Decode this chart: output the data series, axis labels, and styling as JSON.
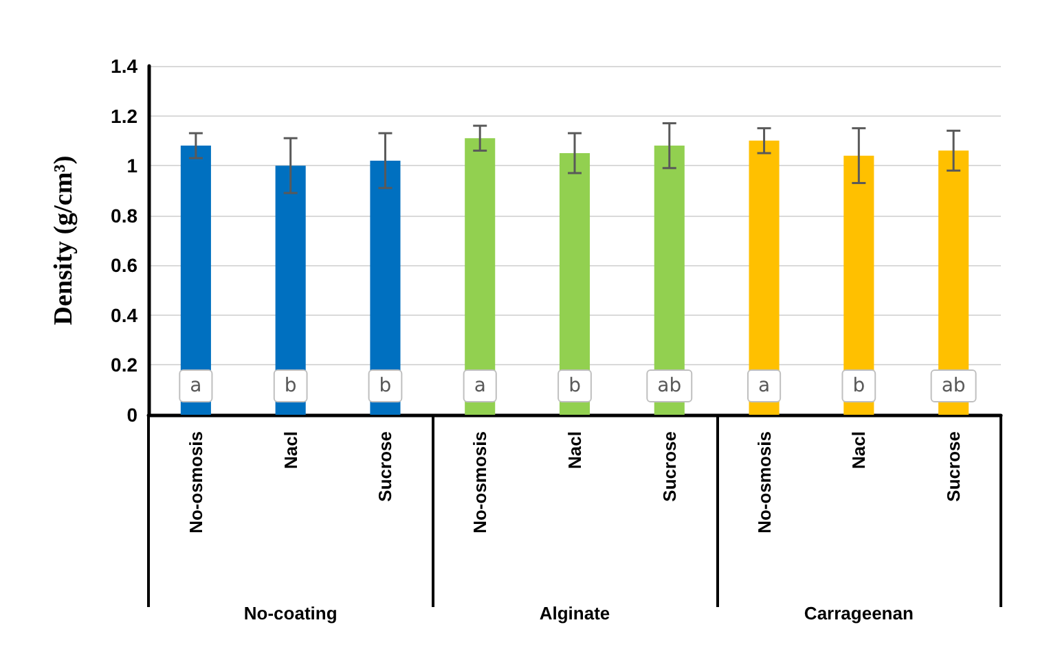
{
  "chart_data": {
    "type": "bar",
    "ylabel": "Density (g/cm³)",
    "categories": [
      "No-osmosis",
      "Nacl",
      "Sucrose",
      "No-osmosis",
      "Nacl",
      "Sucrose",
      "No-osmosis",
      "Nacl",
      "Sucrose"
    ],
    "values": [
      1.08,
      1.0,
      1.02,
      1.11,
      1.05,
      1.08,
      1.1,
      1.04,
      1.06
    ],
    "errors": [
      0.05,
      0.11,
      0.11,
      0.05,
      0.08,
      0.09,
      0.05,
      0.11,
      0.08
    ],
    "colors": [
      "#0070c0",
      "#0070c0",
      "#0070c0",
      "#92d050",
      "#92d050",
      "#92d050",
      "#ffc000",
      "#ffc000",
      "#ffc000"
    ],
    "value_labels": [
      "a",
      "b",
      "b",
      "a",
      "b",
      "ab",
      "a",
      "b",
      "ab"
    ],
    "annotations": [
      "No-coating",
      "Alginate",
      "Carrageenan"
    ],
    "ylim": [
      0,
      1.4
    ],
    "yticks": [
      0,
      0.2,
      0.4,
      0.6,
      0.8,
      1,
      1.2,
      1.4
    ],
    "grid": "y"
  }
}
